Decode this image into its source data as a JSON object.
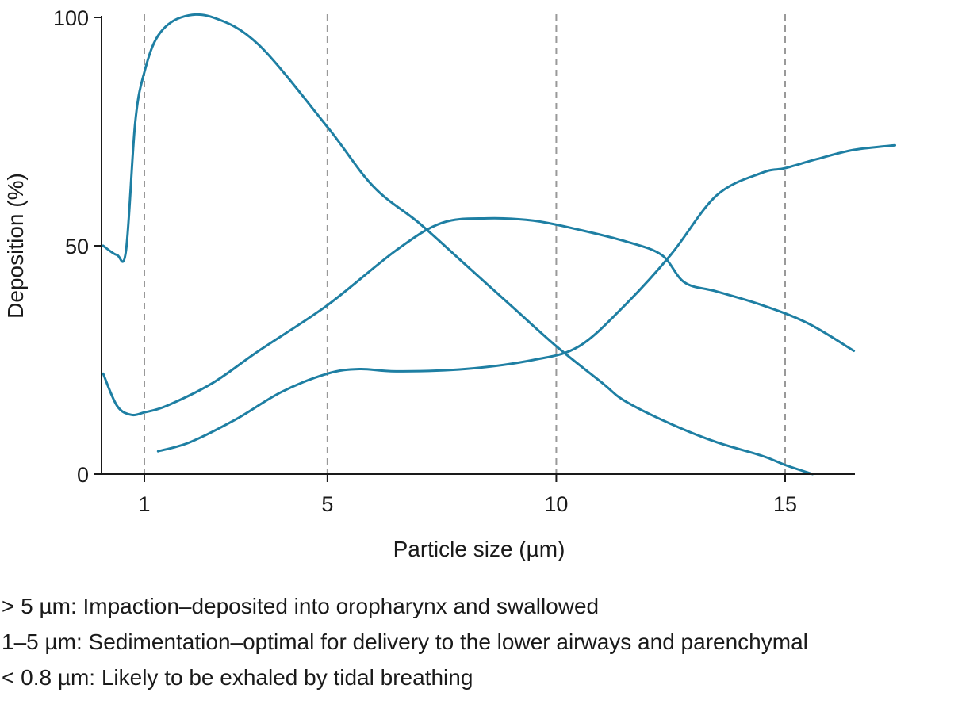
{
  "chart_data": {
    "type": "line",
    "title": "",
    "xlabel": "Particle size (µm)",
    "ylabel": "Deposition (%)",
    "xlim": [
      0.1,
      16.5
    ],
    "ylim": [
      0,
      100
    ],
    "x_ticks": [
      1,
      5,
      10,
      15
    ],
    "x_tick_labels": [
      "1",
      "5",
      "10",
      "15"
    ],
    "y_ticks": [
      0,
      50,
      100
    ],
    "y_tick_labels": [
      "0",
      "50",
      "100"
    ],
    "vertical_reference_lines": [
      1,
      5,
      10,
      15
    ],
    "grid": false,
    "legend": "none",
    "line_color": "#1e7fa3",
    "reference_line_color": "#999999",
    "series": [
      {
        "x": [
          0.1,
          0.4,
          0.6,
          0.8,
          1.0,
          1.3,
          1.8,
          2.5,
          3.5,
          5.0,
          6.0,
          7.0,
          8.0,
          9.0,
          10.0,
          11.0,
          11.5,
          12.5,
          13.5,
          14.5,
          15.0,
          15.6
        ],
        "values": [
          50,
          48,
          49,
          77,
          88,
          96,
          100,
          100,
          94,
          76,
          63,
          55,
          46,
          37,
          28,
          20,
          16,
          11,
          7,
          4,
          2,
          0
        ]
      },
      {
        "x": [
          0.1,
          0.4,
          0.7,
          1.0,
          1.5,
          2.5,
          3.5,
          5.0,
          6.5,
          7.5,
          8.5,
          9.5,
          10.5,
          11.5,
          12.3,
          12.8,
          13.5,
          14.5,
          15.5,
          16.5
        ],
        "values": [
          22,
          15,
          13,
          13.5,
          15,
          20,
          27,
          37,
          49,
          55,
          56,
          55.5,
          53.5,
          51,
          48,
          42,
          40,
          37,
          33,
          27
        ]
      },
      {
        "x": [
          1.3,
          2.0,
          3.0,
          4.0,
          5.0,
          5.7,
          6.5,
          8.0,
          9.5,
          10.5,
          11.5,
          12.5,
          13.5,
          14.5,
          15.0,
          15.7,
          16.5,
          17.4
        ],
        "values": [
          5,
          7,
          12,
          18,
          22,
          23,
          22.5,
          23,
          25,
          28,
          37,
          48,
          61,
          66,
          67,
          69,
          71,
          72
        ]
      }
    ]
  },
  "notes": [
    "> 5 µm: Impaction–deposited into oropharynx and swallowed",
    "1–5 µm: Sedimentation–optimal for delivery to the lower airways and parenchymal",
    "< 0.8 µm: Likely to be exhaled by tidal breathing"
  ]
}
